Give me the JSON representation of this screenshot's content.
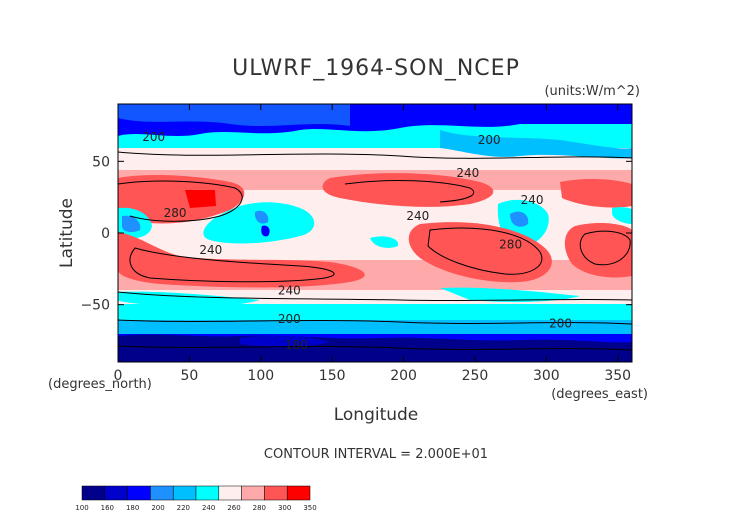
{
  "chart_data": {
    "type": "heatmap",
    "title": "ULWRF_1964-SON_NCEP",
    "units": "(units:W/m^2)",
    "xlabel": "Longitude",
    "ylabel": "Latitude",
    "x_unit_label": "(degrees_east)",
    "y_unit_label": "(degrees_north)",
    "xlim": [
      0,
      360
    ],
    "ylim": [
      -90,
      90
    ],
    "x_ticks": [
      "0",
      "50",
      "100",
      "150",
      "200",
      "250",
      "300",
      "350"
    ],
    "y_ticks": [
      "50",
      "0",
      "−50"
    ],
    "contour_interval": "CONTOUR INTERVAL = 2.000E+01",
    "colorbar": {
      "levels": [
        "100",
        "160",
        "180",
        "200",
        "220",
        "240",
        "260",
        "280",
        "300",
        "350"
      ],
      "colors": [
        "#00008b",
        "#0000cd",
        "#0000ff",
        "#1e90ff",
        "#00bfff",
        "#00ffff",
        "#ffeeee",
        "#ffaaaa",
        "#ff5555",
        "#ff0000"
      ]
    },
    "contour_labels": [
      {
        "text": "200",
        "lon": 25,
        "lat": 67
      },
      {
        "text": "200",
        "lon": 260,
        "lat": 65
      },
      {
        "text": "240",
        "lon": 245,
        "lat": 42
      },
      {
        "text": "240",
        "lon": 290,
        "lat": 23
      },
      {
        "text": "240",
        "lon": 210,
        "lat": 12
      },
      {
        "text": "280",
        "lon": 40,
        "lat": 14
      },
      {
        "text": "280",
        "lon": 275,
        "lat": -8
      },
      {
        "text": "240",
        "lon": 65,
        "lat": -12
      },
      {
        "text": "240",
        "lon": 120,
        "lat": -40
      },
      {
        "text": "200",
        "lon": 120,
        "lat": -60
      },
      {
        "text": "200",
        "lon": 310,
        "lat": -63
      },
      {
        "text": "180",
        "lon": 125,
        "lat": -78
      }
    ],
    "grid": false
  }
}
